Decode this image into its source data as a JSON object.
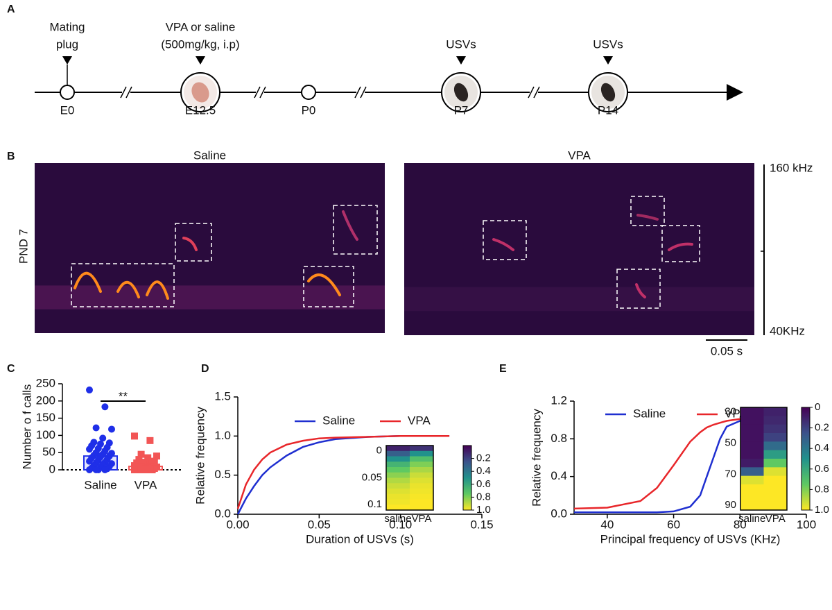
{
  "panels": [
    "A",
    "B",
    "C",
    "D",
    "E"
  ],
  "timeline": {
    "events": [
      {
        "top": [
          "Mating",
          "plug"
        ],
        "label": "E0"
      },
      {
        "top": [
          "VPA or saline",
          "(500mg/kg, i.p)"
        ],
        "label": "E12.5"
      },
      {
        "label": "P0"
      },
      {
        "top": [
          "USVs"
        ],
        "label": "P7"
      },
      {
        "top": [
          "USVs"
        ],
        "label": "P14"
      }
    ]
  },
  "spectrogram": {
    "titles": [
      "Saline",
      "VPA"
    ],
    "row_label": "PND 7",
    "scale_top": "160 kHz",
    "scale_bottom": "40KHz",
    "time_scale": "0.05 s"
  },
  "chart_data": [
    {
      "type": "bar",
      "ylabel": "Number o f calls",
      "categories": [
        "Saline",
        "VPA"
      ],
      "colors": [
        "#1f2fe8",
        "#f25555"
      ],
      "values": [
        40,
        10
      ],
      "errors": [
        8,
        3
      ],
      "points": [
        [
          232,
          183,
          122,
          118,
          92,
          80,
          78,
          75,
          70,
          65,
          62,
          60,
          55,
          50,
          48,
          45,
          42,
          40,
          38,
          35,
          30,
          28,
          25,
          22,
          20,
          18,
          15,
          12,
          10,
          8,
          5,
          3,
          0,
          0,
          0,
          0
        ],
        [
          98,
          85,
          45,
          40,
          35,
          30,
          25,
          22,
          20,
          18,
          15,
          12,
          10,
          10,
          8,
          6,
          5,
          4,
          3,
          2,
          0,
          0,
          0,
          0,
          0
        ]
      ],
      "significance": "**",
      "ylim": [
        0,
        250
      ],
      "yticks": [
        0,
        50,
        100,
        150,
        200,
        250
      ]
    },
    {
      "type": "line",
      "xlabel": "Duration of USVs (s)",
      "ylabel": "Relative frequency",
      "x": [
        0,
        0.005,
        0.01,
        0.015,
        0.02,
        0.03,
        0.04,
        0.05,
        0.06,
        0.08,
        0.1,
        0.13
      ],
      "series": [
        {
          "name": "Saline",
          "color": "#1f2fd0",
          "values": [
            0,
            0.2,
            0.36,
            0.5,
            0.6,
            0.75,
            0.86,
            0.92,
            0.96,
            0.99,
            1.0,
            1.0
          ]
        },
        {
          "name": "VPA",
          "color": "#e8262a",
          "values": [
            0.07,
            0.38,
            0.57,
            0.7,
            0.79,
            0.89,
            0.94,
            0.97,
            0.98,
            0.99,
            1.0,
            1.0
          ]
        }
      ],
      "xlim": [
        0,
        0.15
      ],
      "xticks": [
        {
          "value": 0,
          "label": "0.00"
        },
        0.05,
        {
          "value": 0.1,
          "label": "0.10"
        },
        0.15
      ],
      "ylim": [
        0,
        1.5
      ],
      "yticks": [
        {
          "value": 0,
          "label": "0.0"
        },
        0.5,
        {
          "value": 1,
          "label": "1.0"
        },
        1.5
      ],
      "inset": {
        "columns": [
          "saline",
          "VPA"
        ],
        "values": [
          [
            0.1,
            0.3,
            0.5,
            0.65,
            0.75,
            0.82,
            0.88,
            0.92,
            0.95,
            0.97,
            0.98,
            1.0
          ],
          [
            0.15,
            0.5,
            0.7,
            0.8,
            0.87,
            0.92,
            0.95,
            0.97,
            0.98,
            0.99,
            1.0,
            1.0
          ]
        ],
        "ylim": [
          -0.01,
          0.11
        ],
        "yticks": [
          0,
          0.05,
          0.1
        ],
        "clim": [
          0,
          1
        ],
        "cticks": [
          0.2,
          0.4,
          0.6,
          0.8,
          {
            "value": 1,
            "label": "1.0"
          }
        ]
      }
    },
    {
      "type": "line",
      "xlabel": "Principal frequency of USVs (KHz)",
      "ylabel": "Relative frequency",
      "x": [
        30,
        40,
        50,
        55,
        60,
        65,
        68,
        70,
        72,
        74,
        76,
        80,
        85,
        90
      ],
      "series": [
        {
          "name": "Saline",
          "color": "#1f2fd0",
          "values": [
            0.02,
            0.02,
            0.02,
            0.02,
            0.03,
            0.08,
            0.2,
            0.4,
            0.6,
            0.8,
            0.93,
            0.99,
            1.0,
            1.0
          ]
        },
        {
          "name": "VPA",
          "color": "#e8262a",
          "values": [
            0.06,
            0.07,
            0.14,
            0.28,
            0.52,
            0.77,
            0.87,
            0.92,
            0.95,
            0.97,
            0.99,
            1.01,
            1.02,
            1.02
          ]
        }
      ],
      "xlim": [
        30,
        100
      ],
      "xticks": [
        40,
        60,
        80,
        100
      ],
      "ylim": [
        0,
        1.2
      ],
      "yticks": [
        {
          "value": 0,
          "label": "0.0"
        },
        0.4,
        0.8,
        1.2
      ],
      "inset": {
        "columns": [
          "saline",
          "VPA"
        ],
        "values": [
          [
            0.05,
            0.05,
            0.05,
            0.05,
            0.05,
            0.05,
            0.08,
            0.3,
            0.95,
            1.0,
            1.0,
            1.0
          ],
          [
            0.1,
            0.12,
            0.15,
            0.2,
            0.35,
            0.55,
            0.75,
            0.95,
            1.0,
            1.0,
            1.0,
            1.0
          ]
        ],
        "ylim": [
          27,
          93
        ],
        "yticks": [
          30,
          50,
          70,
          90
        ],
        "clim": [
          0,
          1
        ],
        "cticks": [
          0,
          0.2,
          0.4,
          0.6,
          0.8,
          {
            "value": 1,
            "label": "1.0"
          }
        ]
      }
    }
  ]
}
